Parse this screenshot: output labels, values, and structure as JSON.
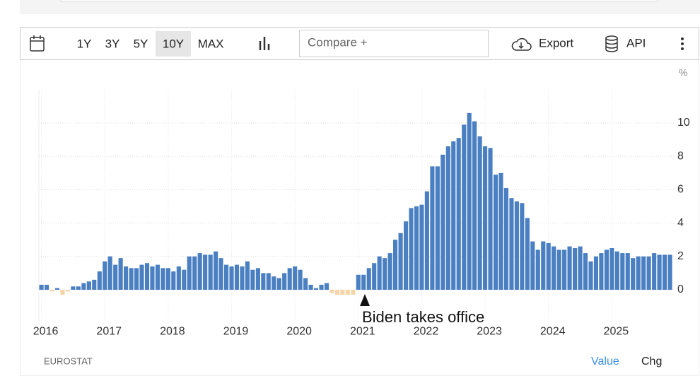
{
  "toolbar": {
    "ranges": [
      "1Y",
      "3Y",
      "5Y",
      "10Y",
      "MAX"
    ],
    "compare": "Compare +",
    "export": "Export",
    "api": "API"
  },
  "footer": {
    "source": "EUROSTAT",
    "value": "Value",
    "chg": "Chg"
  },
  "chart_data": {
    "type": "bar",
    "y_unit": "%",
    "annotation": "Biden takes office",
    "color": "#4a7fc1",
    "negative_color": "#f5d5a8",
    "grid": true,
    "xlim": [
      2015.96,
      2026.0
    ],
    "xticks": [
      2016,
      2017,
      2018,
      2019,
      2020,
      2021,
      2022,
      2023,
      2024,
      2025
    ],
    "ylim": [
      -2,
      12
    ],
    "yticks": [
      0,
      2,
      4,
      6,
      8,
      10
    ],
    "x": [
      2016.0,
      2016.083,
      2016.167,
      2016.25,
      2016.333,
      2016.417,
      2016.5,
      2016.583,
      2016.667,
      2016.75,
      2016.833,
      2016.917,
      2017.0,
      2017.083,
      2017.167,
      2017.25,
      2017.333,
      2017.417,
      2017.5,
      2017.583,
      2017.667,
      2017.75,
      2017.833,
      2017.917,
      2018.0,
      2018.083,
      2018.167,
      2018.25,
      2018.333,
      2018.417,
      2018.5,
      2018.583,
      2018.667,
      2018.75,
      2018.833,
      2018.917,
      2019.0,
      2019.083,
      2019.167,
      2019.25,
      2019.333,
      2019.417,
      2019.5,
      2019.583,
      2019.667,
      2019.75,
      2019.833,
      2019.917,
      2020.0,
      2020.083,
      2020.167,
      2020.25,
      2020.333,
      2020.417,
      2020.5,
      2020.583,
      2020.667,
      2020.75,
      2020.833,
      2020.917,
      2021.0,
      2021.083,
      2021.167,
      2021.25,
      2021.333,
      2021.417,
      2021.5,
      2021.583,
      2021.667,
      2021.75,
      2021.833,
      2021.917,
      2022.0,
      2022.083,
      2022.167,
      2022.25,
      2022.333,
      2022.417,
      2022.5,
      2022.583,
      2022.667,
      2022.75,
      2022.833,
      2022.917,
      2023.0,
      2023.083,
      2023.167,
      2023.25,
      2023.333,
      2023.417,
      2023.5,
      2023.583,
      2023.667,
      2023.75,
      2023.833,
      2023.917,
      2024.0,
      2024.083,
      2024.167,
      2024.25,
      2024.333,
      2024.417,
      2024.5,
      2024.583,
      2024.667,
      2024.75,
      2024.833,
      2024.917,
      2025.0,
      2025.083,
      2025.167,
      2025.25,
      2025.333,
      2025.417,
      2025.5,
      2025.583,
      2025.667,
      2025.75,
      2025.833,
      2025.917
    ],
    "values": [
      0.3,
      0.3,
      -0.1,
      0.1,
      -0.3,
      -0.1,
      0.2,
      0.2,
      0.4,
      0.5,
      0.6,
      1.1,
      1.7,
      2.0,
      1.5,
      1.9,
      1.4,
      1.3,
      1.3,
      1.5,
      1.6,
      1.4,
      1.5,
      1.3,
      1.3,
      1.1,
      1.4,
      1.2,
      2.0,
      2.0,
      2.2,
      2.1,
      2.1,
      2.3,
      1.9,
      1.5,
      1.4,
      1.5,
      1.4,
      1.7,
      1.2,
      1.3,
      1.0,
      1.0,
      0.8,
      0.7,
      1.0,
      1.3,
      1.4,
      1.2,
      0.7,
      0.3,
      0.1,
      0.3,
      0.4,
      -0.2,
      -0.3,
      -0.3,
      -0.3,
      -0.3,
      0.9,
      0.9,
      1.3,
      1.6,
      2.0,
      1.9,
      2.2,
      3.0,
      3.4,
      4.1,
      4.9,
      5.0,
      5.1,
      5.9,
      7.4,
      7.4,
      8.1,
      8.6,
      8.9,
      9.1,
      9.9,
      10.6,
      10.1,
      9.2,
      8.6,
      8.5,
      6.9,
      7.0,
      6.1,
      5.5,
      5.3,
      5.2,
      4.3,
      2.9,
      2.4,
      2.9,
      2.8,
      2.6,
      2.4,
      2.4,
      2.6,
      2.5,
      2.6,
      2.2,
      1.7,
      2.0,
      2.2,
      2.4,
      2.5,
      2.3,
      2.2,
      2.2,
      1.9,
      2.0,
      2.0,
      2.0,
      2.2,
      2.1,
      2.1,
      2.1
    ]
  }
}
